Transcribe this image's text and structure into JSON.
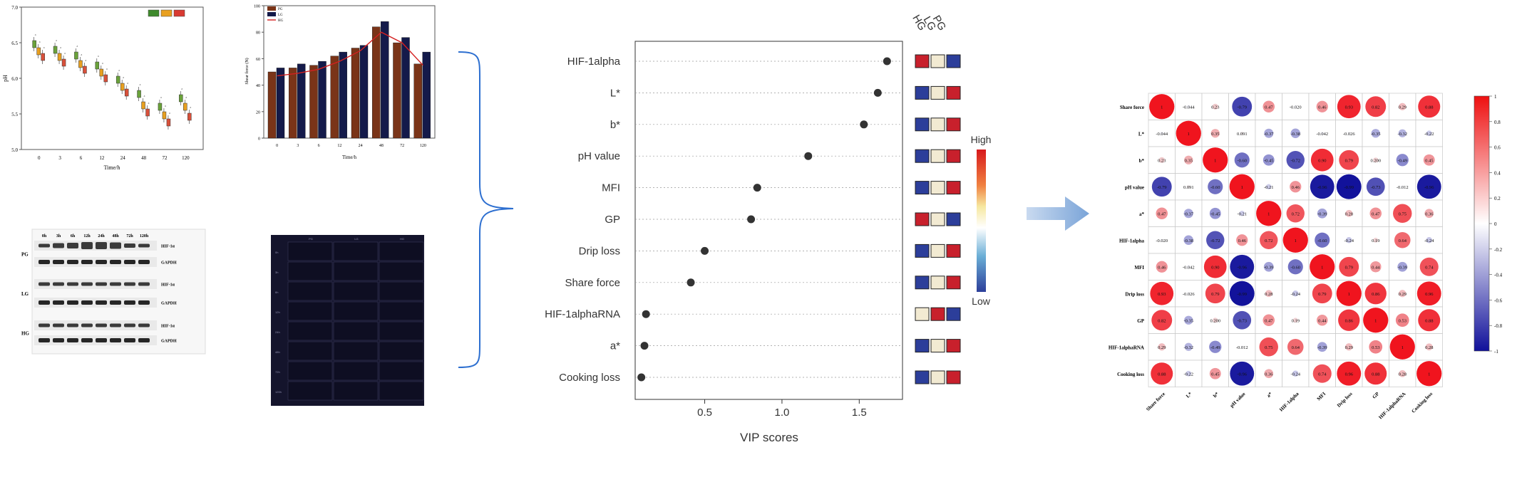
{
  "panel_ph": {
    "ylabel": "pH",
    "xlabel": "Time/h",
    "yticks": [
      "5.0",
      "5.5",
      "6.0",
      "6.5",
      "7.0"
    ],
    "xticks": [
      "0",
      "3",
      "6",
      "12",
      "24",
      "48",
      "72",
      "120"
    ],
    "legend_colors": [
      "#3e8a2c",
      "#e8a020",
      "#d83a32"
    ],
    "series_colors": [
      "#6aa23a",
      "#e8a020",
      "#d8503a"
    ],
    "chart_data": {
      "type": "box",
      "categories": [
        "0",
        "3",
        "6",
        "12",
        "24",
        "48",
        "72",
        "120"
      ],
      "ylim": [
        5.0,
        7.0
      ],
      "series": [
        {
          "values": [
            6.48,
            6.4,
            6.32,
            6.18,
            5.98,
            5.78,
            5.6,
            5.72
          ]
        },
        {
          "values": [
            6.38,
            6.3,
            6.2,
            6.08,
            5.88,
            5.62,
            5.48,
            5.6
          ]
        },
        {
          "values": [
            6.3,
            6.22,
            6.12,
            6.0,
            5.8,
            5.52,
            5.38,
            5.46
          ]
        }
      ]
    }
  },
  "panel_shear": {
    "ylabel": "Shear force (N)",
    "xlabel": "Time/h",
    "yticks": [
      "0",
      "20",
      "40",
      "60",
      "80",
      "100"
    ],
    "xticks": [
      "0",
      "3",
      "6",
      "12",
      "24",
      "48",
      "72",
      "120"
    ],
    "legend": [
      "PG",
      "LG",
      "HG"
    ],
    "colors": [
      "#7a3418",
      "#141a4a",
      "#d42020"
    ],
    "chart_data": {
      "type": "bar",
      "categories": [
        "0",
        "3",
        "6",
        "12",
        "24",
        "48",
        "72",
        "120"
      ],
      "ylim": [
        0,
        100
      ],
      "series": [
        {
          "values": [
            50,
            53,
            55,
            62,
            68,
            84,
            72,
            56
          ]
        },
        {
          "values": [
            53,
            56,
            58,
            65,
            70,
            88,
            76,
            65
          ]
        },
        {
          "values": [
            47,
            49,
            52,
            58,
            66,
            80,
            72,
            55
          ]
        }
      ]
    }
  },
  "blot": {
    "lanes": [
      "0h",
      "3h",
      "6h",
      "12h",
      "24h",
      "48h",
      "72h",
      "120h"
    ],
    "groups": [
      "PG",
      "LG",
      "HG"
    ],
    "bands": [
      "HIF-1α",
      "GAPDH"
    ]
  },
  "fluor": {
    "columns": [
      "PG",
      "LG",
      "HG"
    ],
    "rows": [
      "0h",
      "3h",
      "6h",
      "12h",
      "24h",
      "48h",
      "72h",
      "120h"
    ]
  },
  "vip": {
    "xlabel": "VIP scores",
    "xticks": [
      "0.5",
      "1.0",
      "1.5"
    ],
    "heat_headers": [
      "HG",
      "LG",
      "PG"
    ],
    "legend_high": "High",
    "legend_low": "Low",
    "chart_data": {
      "type": "scatter",
      "xlim": [
        0.05,
        1.78
      ],
      "variables": [
        "HIF-1alpha",
        "L*",
        "b*",
        "pH value",
        "MFI",
        "GP",
        "Drip loss",
        "Share force",
        "HIF-1alphaRNA",
        "a*",
        "Cooking loss"
      ],
      "vip_scores": [
        1.68,
        1.62,
        1.53,
        1.17,
        0.84,
        0.8,
        0.5,
        0.41,
        0.12,
        0.11,
        0.09
      ],
      "heat_colors": [
        [
          "#c8202c",
          "#f2ead2",
          "#2c3e9a"
        ],
        [
          "#2c3e9a",
          "#f2ead2",
          "#c8202c"
        ],
        [
          "#2c3e9a",
          "#f2ead2",
          "#c8202c"
        ],
        [
          "#2c3e9a",
          "#f2ead2",
          "#c8202c"
        ],
        [
          "#2c3e9a",
          "#f2ead2",
          "#c8202c"
        ],
        [
          "#c8202c",
          "#f2ead2",
          "#2c3e9a"
        ],
        [
          "#2c3e9a",
          "#f2ead2",
          "#c8202c"
        ],
        [
          "#2c3e9a",
          "#f2ead2",
          "#c8202c"
        ],
        [
          "#f2ead2",
          "#c8202c",
          "#2c3e9a"
        ],
        [
          "#2c3e9a",
          "#f2ead2",
          "#c8202c"
        ],
        [
          "#2c3e9a",
          "#f2ead2",
          "#c8202c"
        ]
      ]
    }
  },
  "corr": {
    "variables": [
      "Share force",
      "L*",
      "b*",
      "pH value",
      "a*",
      "HIF-1alpha",
      "MFI",
      "Drip loss",
      "GP",
      "HIF-1alphaRNA",
      "Cooking loss"
    ],
    "scale_ticks": [
      "1",
      "0.8",
      "0.6",
      "0.4",
      "0.2",
      "0",
      "-0.2",
      "-0.4",
      "-0.6",
      "-0.8",
      "-1"
    ],
    "chart_data": {
      "type": "heatmap",
      "range": [
        -1,
        1
      ],
      "matrix": [
        [
          1,
          -0.044,
          0.23,
          -0.79,
          0.47,
          -0.02,
          0.46,
          0.93,
          0.82,
          0.29,
          0.88
        ],
        [
          -0.044,
          1,
          0.35,
          0.091,
          -0.37,
          -0.38,
          -0.042,
          -0.026,
          -0.35,
          -0.32,
          -0.22
        ],
        [
          0.23,
          0.35,
          1,
          -0.6,
          -0.45,
          -0.72,
          0.9,
          0.79,
          0.2,
          -0.49,
          0.45
        ],
        [
          -0.79,
          0.091,
          -0.6,
          1,
          -0.21,
          0.46,
          -0.96,
          -0.99,
          -0.73,
          -0.012,
          -0.96
        ],
        [
          0.47,
          -0.37,
          -0.45,
          -0.21,
          1,
          0.72,
          -0.39,
          0.28,
          0.47,
          0.75,
          0.36
        ],
        [
          -0.02,
          -0.38,
          -0.72,
          0.46,
          0.72,
          1,
          -0.6,
          -0.24,
          0.19,
          0.64,
          -0.24
        ],
        [
          0.46,
          -0.042,
          0.9,
          -0.96,
          -0.39,
          -0.6,
          1,
          0.79,
          0.44,
          -0.39,
          0.74
        ],
        [
          0.93,
          -0.026,
          0.79,
          -0.99,
          0.28,
          -0.24,
          0.79,
          1,
          0.86,
          0.29,
          0.96
        ],
        [
          0.82,
          -0.35,
          0.2,
          -0.73,
          0.47,
          0.19,
          0.44,
          0.86,
          1,
          0.53,
          0.88
        ],
        [
          0.29,
          -0.32,
          -0.49,
          -0.012,
          0.75,
          0.64,
          -0.39,
          0.29,
          0.53,
          1,
          0.28
        ],
        [
          0.88,
          -0.22,
          0.45,
          -0.96,
          0.36,
          -0.24,
          0.74,
          0.96,
          0.88,
          0.28,
          1
        ]
      ],
      "labels": [
        [
          "1",
          "-0.044",
          "0.23",
          "-0.79",
          "0.47",
          "-0.020",
          "0.46",
          "0.93",
          "0.82",
          "0.29",
          "0.88"
        ],
        [
          "-0.044",
          "1",
          "0.35",
          "0.091",
          "-0.37",
          "-0.38",
          "-0.042",
          "-0.026",
          "-0.35",
          "-0.32",
          "-0.22"
        ],
        [
          "0.23",
          "0.35",
          "1",
          "-0.60",
          "-0.45",
          "-0.72",
          "0.90",
          "0.79",
          "0.200",
          "-0.49",
          "0.45"
        ],
        [
          "-0.79",
          "0.091",
          "-0.60",
          "1",
          "-0.21",
          "0.46",
          "-0.96",
          "-0.99",
          "-0.73",
          "-0.012",
          "-0.96"
        ],
        [
          "0.47",
          "-0.37",
          "-0.45",
          "-0.21",
          "1",
          "0.72",
          "-0.39",
          "0.28",
          "0.47",
          "0.75",
          "0.36"
        ],
        [
          "-0.020",
          "-0.38",
          "-0.72",
          "0.46",
          "0.72",
          "1",
          "-0.60",
          "-0.24",
          "0.19",
          "0.64",
          "-0.24"
        ],
        [
          "0.46",
          "-0.042",
          "0.90",
          "-0.96",
          "-0.39",
          "-0.60",
          "1",
          "0.79",
          "0.44",
          "-0.39",
          "0.74"
        ],
        [
          "0.93",
          "-0.026",
          "0.79",
          "-0.99",
          "0.28",
          "-0.24",
          "0.79",
          "1",
          "0.86",
          "0.29",
          "0.96"
        ],
        [
          "0.82",
          "-0.35",
          "0.200",
          "-0.73",
          "0.47",
          "0.19",
          "0.44",
          "0.86",
          "1",
          "0.53",
          "0.88"
        ],
        [
          "0.29",
          "-0.32",
          "-0.49",
          "-0.012",
          "0.75",
          "0.64",
          "-0.39",
          "0.29",
          "0.53",
          "1",
          "0.28"
        ],
        [
          "0.88",
          "-0.22",
          "0.45",
          "-0.96",
          "0.36",
          "-0.24",
          "0.74",
          "0.96",
          "0.88",
          "0.28",
          "1"
        ]
      ]
    }
  }
}
